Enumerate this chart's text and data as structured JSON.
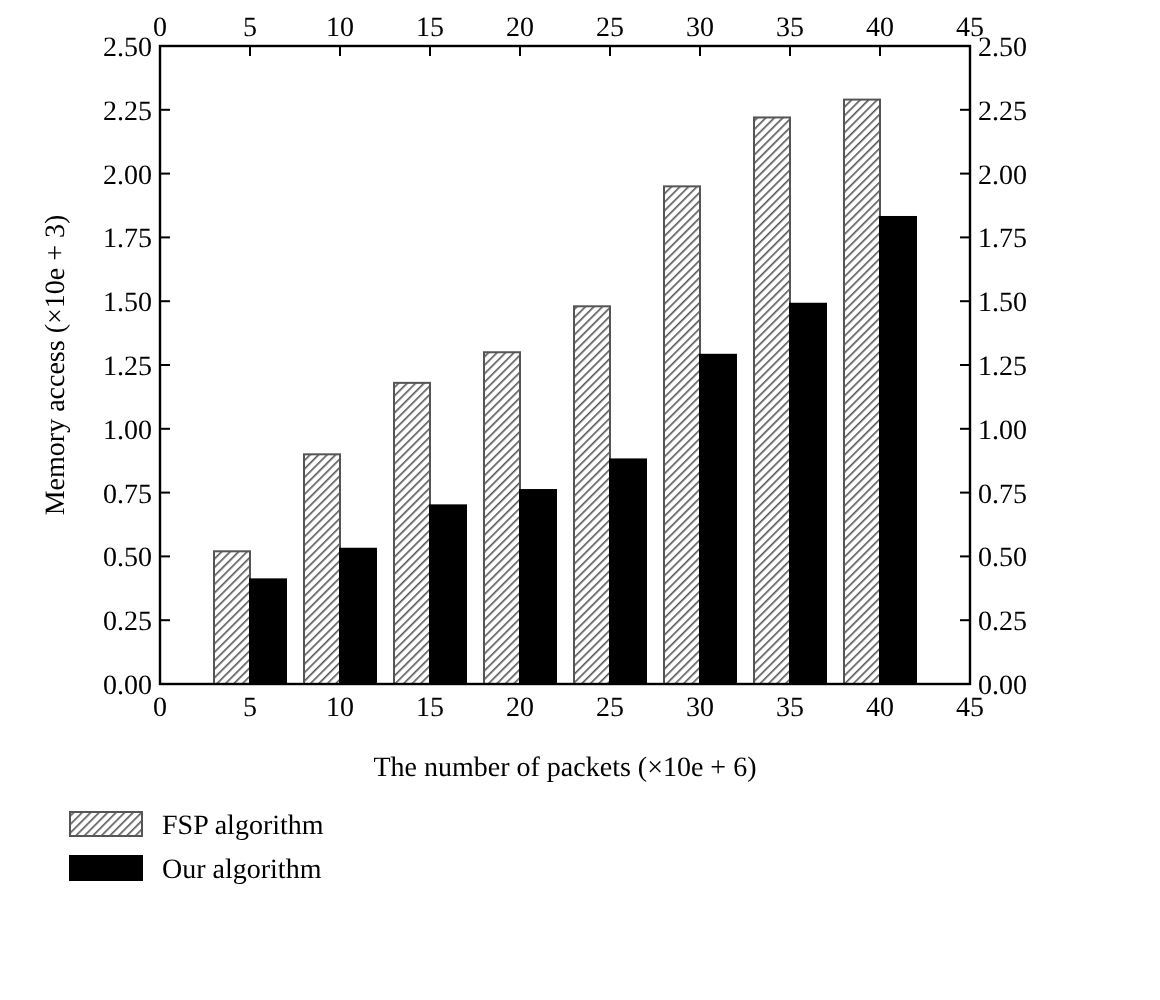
{
  "chart_data": {
    "type": "bar",
    "xlabel": "The number of packets (×10e + 6)",
    "ylabel": "Memory access (×10e + 3)",
    "x": [
      5,
      10,
      15,
      20,
      25,
      30,
      35,
      40
    ],
    "series": [
      {
        "name": "FSP algorithm",
        "color": "#555555",
        "values": [
          0.52,
          0.9,
          1.18,
          1.3,
          1.48,
          1.95,
          2.22,
          2.29
        ]
      },
      {
        "name": "Our algorithm",
        "color": "#000000",
        "values": [
          0.41,
          0.53,
          0.7,
          0.76,
          0.88,
          1.29,
          1.49,
          1.83
        ]
      }
    ],
    "xlim": [
      0,
      45
    ],
    "xticks": [
      0,
      5,
      10,
      15,
      20,
      25,
      30,
      35,
      40,
      45
    ],
    "x2lim": [
      0,
      45
    ],
    "x2ticks": [
      0,
      5,
      10,
      15,
      20,
      25,
      30,
      35,
      40,
      45
    ],
    "ylim": [
      0,
      2.5
    ],
    "yticks": [
      {
        "value": 0,
        "label": "0.00"
      },
      {
        "value": 0.25,
        "label": "0.25"
      },
      {
        "value": 0.5,
        "label": "0.50"
      },
      {
        "value": 0.75,
        "label": "0.75"
      },
      {
        "value": 1,
        "label": "1.00"
      },
      {
        "value": 1.25,
        "label": "1.25"
      },
      {
        "value": 1.5,
        "label": "1.50"
      },
      {
        "value": 1.75,
        "label": "1.75"
      },
      {
        "value": 2,
        "label": "2.00"
      },
      {
        "value": 2.25,
        "label": "2.25"
      },
      {
        "value": 2.5,
        "label": "2.50"
      }
    ],
    "y2lim": [
      0,
      2.5
    ],
    "y2ticks": [
      {
        "value": 0,
        "label": "0.00"
      },
      {
        "value": 0.25,
        "label": "0.25"
      },
      {
        "value": 0.5,
        "label": "0.50"
      },
      {
        "value": 0.75,
        "label": "0.75"
      },
      {
        "value": 1,
        "label": "1.00"
      },
      {
        "value": 1.25,
        "label": "1.25"
      },
      {
        "value": 1.5,
        "label": "1.50"
      },
      {
        "value": 1.75,
        "label": "1.75"
      },
      {
        "value": 2,
        "label": "2.00"
      },
      {
        "value": 2.25,
        "label": "2.25"
      },
      {
        "value": 2.5,
        "label": "2.50"
      }
    ],
    "grid": false,
    "legend": "bottom"
  }
}
